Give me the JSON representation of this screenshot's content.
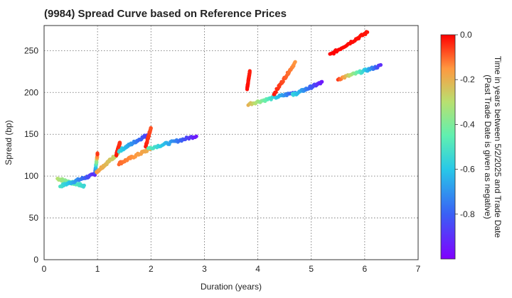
{
  "chart_data": {
    "type": "scatter",
    "title": "(9984)   Spread Curve based on Reference Prices",
    "xlabel": "Duration (years)",
    "ylabel": "Spread (bp)",
    "xlim": [
      0,
      7
    ],
    "ylim": [
      0,
      280
    ],
    "xticks": [
      "0",
      "1",
      "2",
      "3",
      "4",
      "5",
      "6",
      "7"
    ],
    "yticks": [
      "0",
      "50",
      "100",
      "150",
      "200",
      "250"
    ],
    "grid": true,
    "colorbar": {
      "label_line1": "Time in years between 5/2/2025 and Trade Date",
      "label_line2": "(Past Trade Date is given as negative)",
      "range": [
        -1.0,
        0.0
      ],
      "ticks": [
        "0.0",
        "-0.2",
        "-0.4",
        "-0.6",
        "-0.8"
      ],
      "colormap": "rainbow"
    },
    "clusters": [
      {
        "x": [
          0.25,
          0.75
        ],
        "y": [
          97,
          88
        ],
        "t": [
          -0.3,
          -0.55
        ]
      },
      {
        "x": [
          0.3,
          0.95
        ],
        "y": [
          88,
          102
        ],
        "t": [
          -0.5,
          -0.92
        ]
      },
      {
        "x": [
          0.95,
          1.0
        ],
        "y": [
          102,
          127
        ],
        "t": [
          -0.95,
          -0.05
        ]
      },
      {
        "x": [
          0.98,
          1.4
        ],
        "y": [
          105,
          128
        ],
        "t": [
          -0.15,
          -0.3
        ]
      },
      {
        "x": [
          1.35,
          1.42
        ],
        "y": [
          125,
          140
        ],
        "t": [
          -0.02,
          -0.05
        ]
      },
      {
        "x": [
          1.4,
          1.95
        ],
        "y": [
          130,
          150
        ],
        "t": [
          -0.55,
          -0.88
        ]
      },
      {
        "x": [
          1.4,
          2.0
        ],
        "y": [
          115,
          133
        ],
        "t": [
          -0.1,
          -0.2
        ]
      },
      {
        "x": [
          1.9,
          2.0
        ],
        "y": [
          135,
          158
        ],
        "t": [
          -0.02,
          -0.08
        ]
      },
      {
        "x": [
          1.95,
          2.85
        ],
        "y": [
          133,
          148
        ],
        "t": [
          -0.45,
          -0.95
        ]
      },
      {
        "x": [
          3.8,
          3.85
        ],
        "y": [
          205,
          225
        ],
        "t": [
          -0.01,
          -0.03
        ]
      },
      {
        "x": [
          3.82,
          4.7
        ],
        "y": [
          186,
          200
        ],
        "t": [
          -0.2,
          -0.85
        ]
      },
      {
        "x": [
          4.3,
          4.7
        ],
        "y": [
          198,
          236
        ],
        "t": [
          -0.02,
          -0.15
        ]
      },
      {
        "x": [
          4.65,
          5.2
        ],
        "y": [
          197,
          212
        ],
        "t": [
          -0.55,
          -0.95
        ]
      },
      {
        "x": [
          5.35,
          6.05
        ],
        "y": [
          245,
          272
        ],
        "t": [
          0.0,
          -0.02
        ]
      },
      {
        "x": [
          5.5,
          6.3
        ],
        "y": [
          216,
          232
        ],
        "t": [
          -0.05,
          -0.9
        ]
      }
    ]
  }
}
